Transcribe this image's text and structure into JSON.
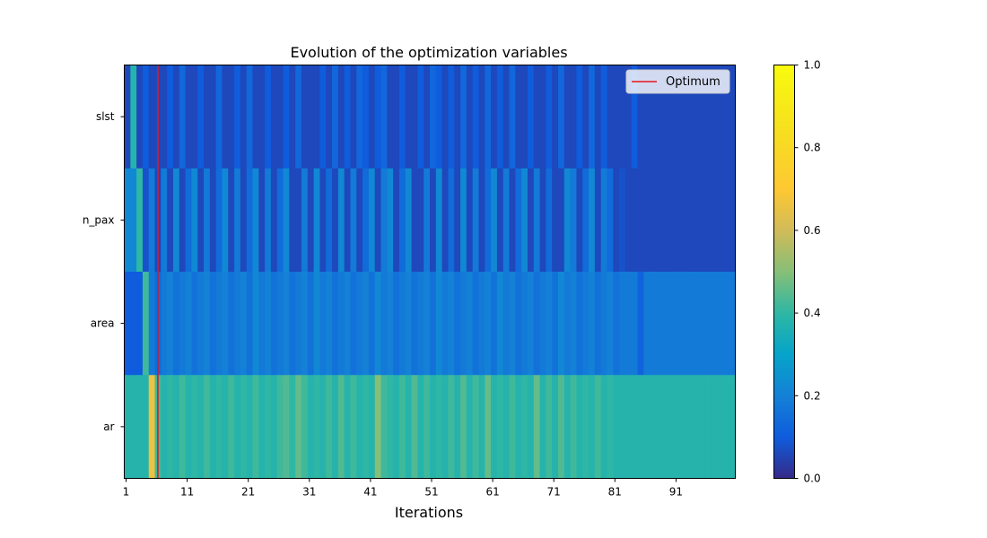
{
  "chart_data": {
    "type": "heatmap",
    "title": "Evolution of the optimization variables",
    "xlabel": "Iterations",
    "ylabel": "",
    "rows": [
      "slst",
      "n_pax",
      "area",
      "ar"
    ],
    "x_tick_labels": [
      "1",
      "11",
      "21",
      "31",
      "41",
      "51",
      "61",
      "71",
      "81",
      "91"
    ],
    "x_tick_values": [
      1,
      11,
      21,
      31,
      41,
      51,
      61,
      71,
      81,
      91
    ],
    "x_range": [
      1,
      100
    ],
    "optimum_iteration": 6,
    "legend": {
      "entries": [
        "Optimum"
      ],
      "placement": "top-right",
      "line_color": "#e8141c"
    },
    "colorbar": {
      "min": 0.0,
      "max": 1.0,
      "tick_labels": [
        "0.0",
        "0.2",
        "0.4",
        "0.6",
        "0.8",
        "1.0"
      ],
      "tick_values": [
        0.0,
        0.2,
        0.4,
        0.6,
        0.8,
        1.0
      ],
      "colormap": "parula"
    },
    "values": [
      [
        0.06,
        0.38,
        0.06,
        0.1,
        0.06,
        0.06,
        0.06,
        0.1,
        0.06,
        0.13,
        0.06,
        0.06,
        0.1,
        0.06,
        0.06,
        0.13,
        0.06,
        0.06,
        0.1,
        0.06,
        0.13,
        0.06,
        0.06,
        0.1,
        0.06,
        0.06,
        0.1,
        0.06,
        0.13,
        0.06,
        0.06,
        0.06,
        0.1,
        0.06,
        0.13,
        0.06,
        0.1,
        0.06,
        0.13,
        0.1,
        0.06,
        0.1,
        0.13,
        0.06,
        0.06,
        0.1,
        0.06,
        0.06,
        0.1,
        0.06,
        0.13,
        0.1,
        0.06,
        0.1,
        0.06,
        0.13,
        0.06,
        0.1,
        0.06,
        0.13,
        0.06,
        0.1,
        0.06,
        0.13,
        0.06,
        0.06,
        0.1,
        0.06,
        0.06,
        0.1,
        0.06,
        0.13,
        0.06,
        0.06,
        0.1,
        0.06,
        0.13,
        0.06,
        0.1,
        0.06,
        0.06,
        0.06,
        0.06,
        0.1,
        0.06,
        0.06,
        0.06,
        0.06,
        0.06,
        0.06,
        0.06,
        0.06,
        0.06,
        0.06,
        0.06,
        0.06,
        0.06,
        0.06,
        0.06,
        0.06
      ],
      [
        0.22,
        0.22,
        0.4,
        0.08,
        0.18,
        0.06,
        0.18,
        0.06,
        0.22,
        0.06,
        0.14,
        0.22,
        0.06,
        0.18,
        0.06,
        0.14,
        0.22,
        0.06,
        0.18,
        0.06,
        0.14,
        0.22,
        0.06,
        0.18,
        0.06,
        0.14,
        0.22,
        0.06,
        0.06,
        0.18,
        0.06,
        0.22,
        0.06,
        0.14,
        0.06,
        0.22,
        0.06,
        0.18,
        0.06,
        0.14,
        0.22,
        0.06,
        0.18,
        0.22,
        0.06,
        0.14,
        0.22,
        0.06,
        0.06,
        0.18,
        0.06,
        0.22,
        0.06,
        0.14,
        0.06,
        0.22,
        0.06,
        0.18,
        0.06,
        0.14,
        0.22,
        0.06,
        0.18,
        0.06,
        0.14,
        0.22,
        0.06,
        0.18,
        0.06,
        0.14,
        0.06,
        0.06,
        0.22,
        0.18,
        0.06,
        0.14,
        0.22,
        0.06,
        0.18,
        0.14,
        0.06,
        0.08,
        0.06,
        0.06,
        0.06,
        0.06,
        0.06,
        0.06,
        0.06,
        0.06,
        0.06,
        0.06,
        0.06,
        0.06,
        0.06,
        0.06,
        0.06,
        0.06,
        0.06,
        0.06
      ],
      [
        0.1,
        0.1,
        0.1,
        0.42,
        0.18,
        0.14,
        0.18,
        0.2,
        0.16,
        0.18,
        0.2,
        0.16,
        0.18,
        0.2,
        0.16,
        0.18,
        0.2,
        0.16,
        0.18,
        0.2,
        0.16,
        0.22,
        0.18,
        0.2,
        0.16,
        0.18,
        0.2,
        0.16,
        0.18,
        0.2,
        0.16,
        0.22,
        0.18,
        0.2,
        0.16,
        0.18,
        0.2,
        0.16,
        0.18,
        0.2,
        0.16,
        0.22,
        0.18,
        0.2,
        0.16,
        0.18,
        0.2,
        0.16,
        0.18,
        0.2,
        0.16,
        0.22,
        0.18,
        0.2,
        0.16,
        0.18,
        0.2,
        0.16,
        0.18,
        0.2,
        0.16,
        0.22,
        0.18,
        0.2,
        0.16,
        0.18,
        0.2,
        0.16,
        0.18,
        0.2,
        0.16,
        0.22,
        0.18,
        0.2,
        0.16,
        0.18,
        0.2,
        0.16,
        0.18,
        0.2,
        0.16,
        0.18,
        0.18,
        0.18,
        0.12,
        0.18,
        0.18,
        0.18,
        0.18,
        0.18,
        0.18,
        0.18,
        0.18,
        0.18,
        0.18,
        0.18,
        0.18,
        0.18,
        0.18,
        0.18
      ],
      [
        0.38,
        0.38,
        0.38,
        0.38,
        0.66,
        0.42,
        0.38,
        0.4,
        0.38,
        0.42,
        0.38,
        0.4,
        0.38,
        0.42,
        0.38,
        0.4,
        0.38,
        0.42,
        0.38,
        0.4,
        0.38,
        0.42,
        0.38,
        0.4,
        0.38,
        0.42,
        0.44,
        0.4,
        0.46,
        0.42,
        0.38,
        0.4,
        0.38,
        0.42,
        0.38,
        0.44,
        0.38,
        0.42,
        0.38,
        0.4,
        0.38,
        0.5,
        0.42,
        0.4,
        0.38,
        0.42,
        0.38,
        0.44,
        0.38,
        0.42,
        0.38,
        0.4,
        0.38,
        0.42,
        0.38,
        0.44,
        0.38,
        0.42,
        0.38,
        0.46,
        0.38,
        0.4,
        0.38,
        0.42,
        0.38,
        0.4,
        0.38,
        0.46,
        0.38,
        0.42,
        0.38,
        0.44,
        0.38,
        0.42,
        0.38,
        0.4,
        0.38,
        0.42,
        0.38,
        0.4,
        0.38,
        0.38,
        0.38,
        0.38,
        0.38,
        0.38,
        0.38,
        0.38,
        0.38,
        0.38,
        0.38,
        0.38,
        0.38,
        0.38,
        0.38,
        0.38,
        0.38,
        0.38,
        0.38,
        0.38
      ]
    ]
  }
}
